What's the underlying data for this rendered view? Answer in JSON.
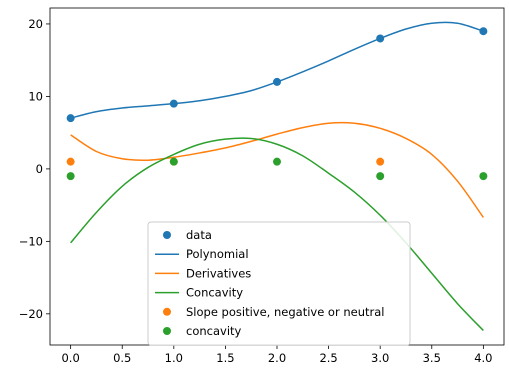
{
  "chart_data": {
    "type": "line",
    "xlim": [
      -0.2,
      4.2
    ],
    "ylim": [
      -24.3,
      22.2
    ],
    "x_ticks": [
      0.0,
      0.5,
      1.0,
      1.5,
      2.0,
      2.5,
      3.0,
      3.5,
      4.0
    ],
    "x_tick_labels": [
      "0.0",
      "0.5",
      "1.0",
      "1.5",
      "2.0",
      "2.5",
      "3.0",
      "3.5",
      "4.0"
    ],
    "y_ticks": [
      -20,
      -10,
      0,
      10,
      20
    ],
    "y_tick_labels": [
      "−20",
      "−10",
      "0",
      "10",
      "20"
    ],
    "grid": false,
    "legend_position": "lower-center",
    "series": [
      {
        "name": "data",
        "kind": "scatter",
        "color": "#1f77b4",
        "x": [
          0,
          1,
          2,
          3,
          4
        ],
        "y": [
          7,
          9,
          12,
          18,
          19
        ]
      },
      {
        "name": "Polynomial",
        "kind": "line",
        "color": "#1f77b4",
        "x": [
          0,
          0.25,
          0.5,
          0.75,
          1,
          1.25,
          1.5,
          1.75,
          2,
          2.25,
          2.5,
          2.75,
          3,
          3.25,
          3.5,
          3.75,
          4
        ],
        "y": [
          7,
          7.9,
          8.4,
          8.7,
          9.0,
          9.4,
          10.0,
          10.8,
          12.0,
          13.4,
          14.9,
          16.5,
          18.0,
          19.3,
          20.1,
          20.1,
          19
        ]
      },
      {
        "name": "Derivatives",
        "kind": "line",
        "color": "#ff7f0e",
        "x": [
          0,
          0.25,
          0.5,
          0.75,
          1,
          1.25,
          1.5,
          1.75,
          2,
          2.25,
          2.5,
          2.75,
          3,
          3.25,
          3.5,
          3.75,
          4
        ],
        "y": [
          4.7,
          2.4,
          1.4,
          1.2,
          1.6,
          2.2,
          2.9,
          3.8,
          4.8,
          5.7,
          6.3,
          6.3,
          5.6,
          4.2,
          2.0,
          -1.7,
          -6.7
        ]
      },
      {
        "name": "Concavity",
        "kind": "line",
        "color": "#2ca02c",
        "x": [
          0,
          0.25,
          0.5,
          0.75,
          1,
          1.25,
          1.5,
          1.75,
          2,
          2.25,
          2.5,
          2.75,
          3,
          3.25,
          3.5,
          3.75,
          4
        ],
        "y": [
          -10.2,
          -6.0,
          -2.4,
          0.2,
          2.0,
          3.4,
          4.1,
          4.2,
          3.4,
          1.8,
          -0.6,
          -3.2,
          -6.4,
          -10.2,
          -14.4,
          -18.6,
          -22.3
        ]
      },
      {
        "name": "Slope positive, negative or neutral",
        "kind": "scatter",
        "color": "#ff7f0e",
        "x": [
          0,
          1,
          3
        ],
        "y": [
          1,
          1,
          1
        ]
      },
      {
        "name": "concavity",
        "kind": "scatter",
        "color": "#2ca02c",
        "x": [
          0,
          1,
          2,
          3,
          4
        ],
        "y": [
          -1,
          1,
          1,
          -1,
          -1
        ]
      }
    ]
  }
}
